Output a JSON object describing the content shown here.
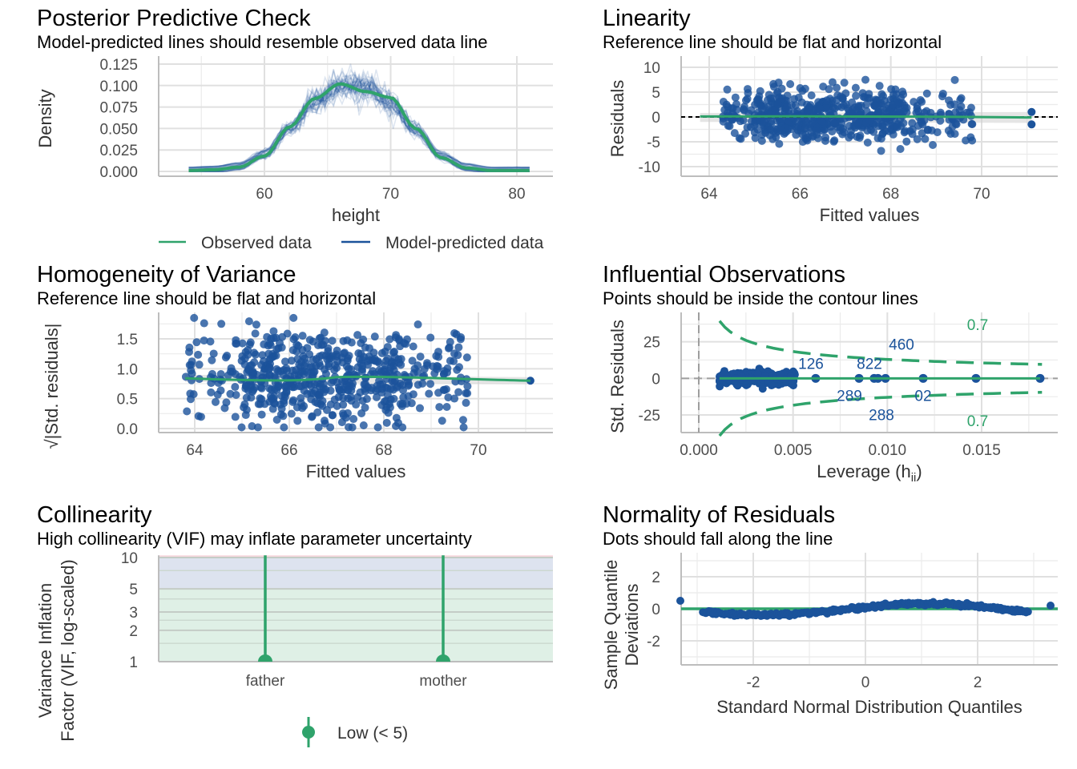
{
  "colors": {
    "observed": "#2fa36b",
    "predicted": "#1b539b",
    "point": "#1b539b",
    "line": "#2fa36b",
    "reference": "#000000"
  },
  "chart_data": [
    {
      "type": "line",
      "title": "Posterior Predictive Check",
      "subtitle": "Model-predicted lines should resemble observed data line",
      "xlabel": "height",
      "ylabel": "Density",
      "xlim": [
        53,
        82
      ],
      "ylim": [
        0,
        0.125
      ],
      "xticks": [
        "60",
        "70",
        "80"
      ],
      "yticks": [
        "0.000",
        "0.025",
        "0.050",
        "0.075",
        "0.100",
        "0.125"
      ],
      "legend": {
        "position": "bottom",
        "entries": [
          "Observed data",
          "Model-predicted data"
        ]
      },
      "series": [
        {
          "name": "Observed data",
          "x": [
            54,
            56,
            58,
            60,
            62,
            64,
            66,
            68,
            70,
            72,
            74,
            76,
            78,
            81
          ],
          "y": [
            0.001,
            0.002,
            0.005,
            0.018,
            0.052,
            0.085,
            0.102,
            0.093,
            0.086,
            0.05,
            0.016,
            0.004,
            0.001,
            0.001
          ]
        },
        {
          "name": "Model-predicted data",
          "x": [
            54,
            56,
            58,
            60,
            62,
            64,
            66,
            68,
            70,
            72,
            74,
            76,
            78,
            81
          ],
          "y": [
            0.001,
            0.002,
            0.006,
            0.02,
            0.05,
            0.082,
            0.1,
            0.098,
            0.08,
            0.048,
            0.018,
            0.005,
            0.001,
            0.001
          ]
        }
      ]
    },
    {
      "type": "scatter",
      "title": "Linearity",
      "subtitle": "Reference line should be flat and horizontal",
      "xlabel": "Fitted values",
      "ylabel": "Residuals",
      "xlim": [
        63.3,
        71.5
      ],
      "ylim": [
        -10,
        12
      ],
      "xticks": [
        "64",
        "66",
        "68",
        "70"
      ],
      "yticks": [
        "-10",
        "-5",
        "0",
        "5",
        "10"
      ],
      "reference_y": 0,
      "n_points": 898
    },
    {
      "type": "scatter",
      "title": "Homogeneity of Variance",
      "subtitle": "Reference line should be flat and horizontal",
      "xlabel": "Fitted values",
      "ylabel": "√|Std. residuals|",
      "xlim": [
        63.3,
        71.5
      ],
      "ylim": [
        0,
        1.9
      ],
      "xticks": [
        "64",
        "66",
        "68",
        "70"
      ],
      "yticks": [
        "0.0",
        "0.5",
        "1.0",
        "1.5"
      ]
    },
    {
      "type": "scatter",
      "title": "Influential Observations",
      "subtitle": "Points should be inside the contour lines",
      "xlabel": "Leverage (h",
      "xlabel_sub": "ii",
      "xlabel_end": ")",
      "ylabel": "Std. Residuals",
      "xlim": [
        -0.0013,
        0.0188
      ],
      "ylim": [
        -37,
        45
      ],
      "xticks": [
        "0.000",
        "0.005",
        "0.010",
        "0.015"
      ],
      "yticks": [
        "-25",
        "0",
        "25"
      ],
      "contour_label": "0.7",
      "point_labels": [
        "126",
        "289",
        "822",
        "288",
        "460",
        "02"
      ]
    },
    {
      "type": "bar",
      "title": "Collinearity",
      "subtitle": "High collinearity (VIF) may inflate parameter uncertainty",
      "ylabel": "Variance Inflation\nFactor (VIF, log-scaled)",
      "ylabel_lines": [
        "Variance Inflation",
        "Factor (VIF, log-scaled)"
      ],
      "categories": [
        "father",
        "mother"
      ],
      "values": [
        1.0,
        1.0
      ],
      "ci_high": [
        12,
        12
      ],
      "yscale": "log",
      "ylim": [
        1,
        10.5
      ],
      "yticks": [
        "1",
        "2",
        "3",
        "5",
        "10"
      ],
      "legend": {
        "position": "bottom",
        "entries": [
          "Low (< 5)"
        ]
      }
    },
    {
      "type": "scatter",
      "title": "Normality of Residuals",
      "subtitle": "Dots should fall along the line",
      "xlabel": "Standard Normal Distribution Quantiles",
      "ylabel": "Sample Quantile Deviations",
      "xlim": [
        -3.5,
        3.5
      ],
      "ylim": [
        -3.2,
        3.5
      ],
      "xticks": [
        "-2",
        "0",
        "2"
      ],
      "yticks": [
        "-2",
        "0",
        "2"
      ]
    }
  ]
}
